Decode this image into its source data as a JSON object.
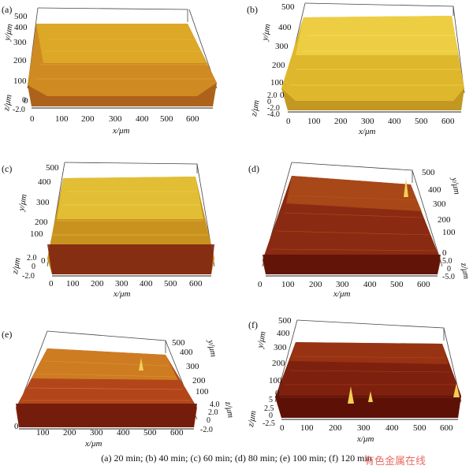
{
  "figure": {
    "caption": "(a) 20 min; (b) 40 min; (c)  60 min; (d) 80 min; (e) 100 min; (f) 120 min",
    "watermark": "有色金属在线",
    "colors": {
      "gold": "#e2b528",
      "orange": "#c47a1c",
      "dark_red": "#7a1a0e",
      "bright": "#f4dc5a"
    },
    "panels": [
      {
        "id": "a",
        "letter": "(a)",
        "x_label": "x/μm",
        "y_label": "y/μm",
        "z_label": "z/μm",
        "x_ticks": [
          "0",
          "100",
          "200",
          "300",
          "400",
          "500",
          "600"
        ],
        "y_ticks": [
          "500",
          "400",
          "300",
          "200",
          "100",
          "0"
        ],
        "z_ticks": [
          "0",
          "-2.0"
        ],
        "palette": "gold-orange"
      },
      {
        "id": "b",
        "letter": "(b)",
        "x_label": "x/μm",
        "y_label": "y/μm",
        "z_label": "z/μm",
        "x_ticks": [
          "0",
          "100",
          "200",
          "300",
          "400",
          "500",
          "600"
        ],
        "y_ticks": [
          "500",
          "400",
          "300",
          "200",
          "100",
          "0"
        ],
        "z_ticks": [
          "2.0",
          "0",
          "-2.0",
          "-4.0"
        ],
        "palette": "bright-gold"
      },
      {
        "id": "c",
        "letter": "(c)",
        "x_label": "x/μm",
        "y_label": "y/μm",
        "z_label": "z/μm",
        "x_ticks": [
          "0",
          "100",
          "200",
          "300",
          "400",
          "500",
          "600"
        ],
        "y_ticks": [
          "500",
          "400",
          "300",
          "200",
          "100",
          "0"
        ],
        "z_ticks": [
          "2.0",
          "0",
          "-2.0"
        ],
        "palette": "gold-darkred"
      },
      {
        "id": "d",
        "letter": "(d)",
        "x_label": "x/μm",
        "y_label": "y/μm",
        "z_label": "z/μm",
        "x_ticks": [
          "0",
          "100",
          "200",
          "300",
          "400",
          "500",
          "600"
        ],
        "y_ticks": [
          "500",
          "400",
          "300",
          "200",
          "100",
          "0"
        ],
        "z_ticks": [
          "5.0",
          "0",
          "-5.0"
        ],
        "palette": "darkred"
      },
      {
        "id": "e",
        "letter": "(e)",
        "x_label": "x/μm",
        "y_label": "y/μm",
        "z_label": "z/μm",
        "x_ticks": [
          "0",
          "100",
          "200",
          "300",
          "400",
          "500",
          "600"
        ],
        "y_ticks": [
          "500",
          "400",
          "300",
          "200",
          "100"
        ],
        "z_ticks": [
          "4.0",
          "2.0",
          "0",
          "-2.0"
        ],
        "palette": "orange-red"
      },
      {
        "id": "f",
        "letter": "(f)",
        "x_label": "x/μm",
        "y_label": "y/μm",
        "z_label": "z/μm",
        "x_ticks": [
          "0",
          "100",
          "200",
          "300",
          "400",
          "500",
          "600"
        ],
        "y_ticks": [
          "500",
          "400",
          "300",
          "200",
          "100",
          "0"
        ],
        "z_ticks": [
          "5",
          "2.5",
          "0",
          "-2.5"
        ],
        "palette": "darkred"
      }
    ]
  }
}
